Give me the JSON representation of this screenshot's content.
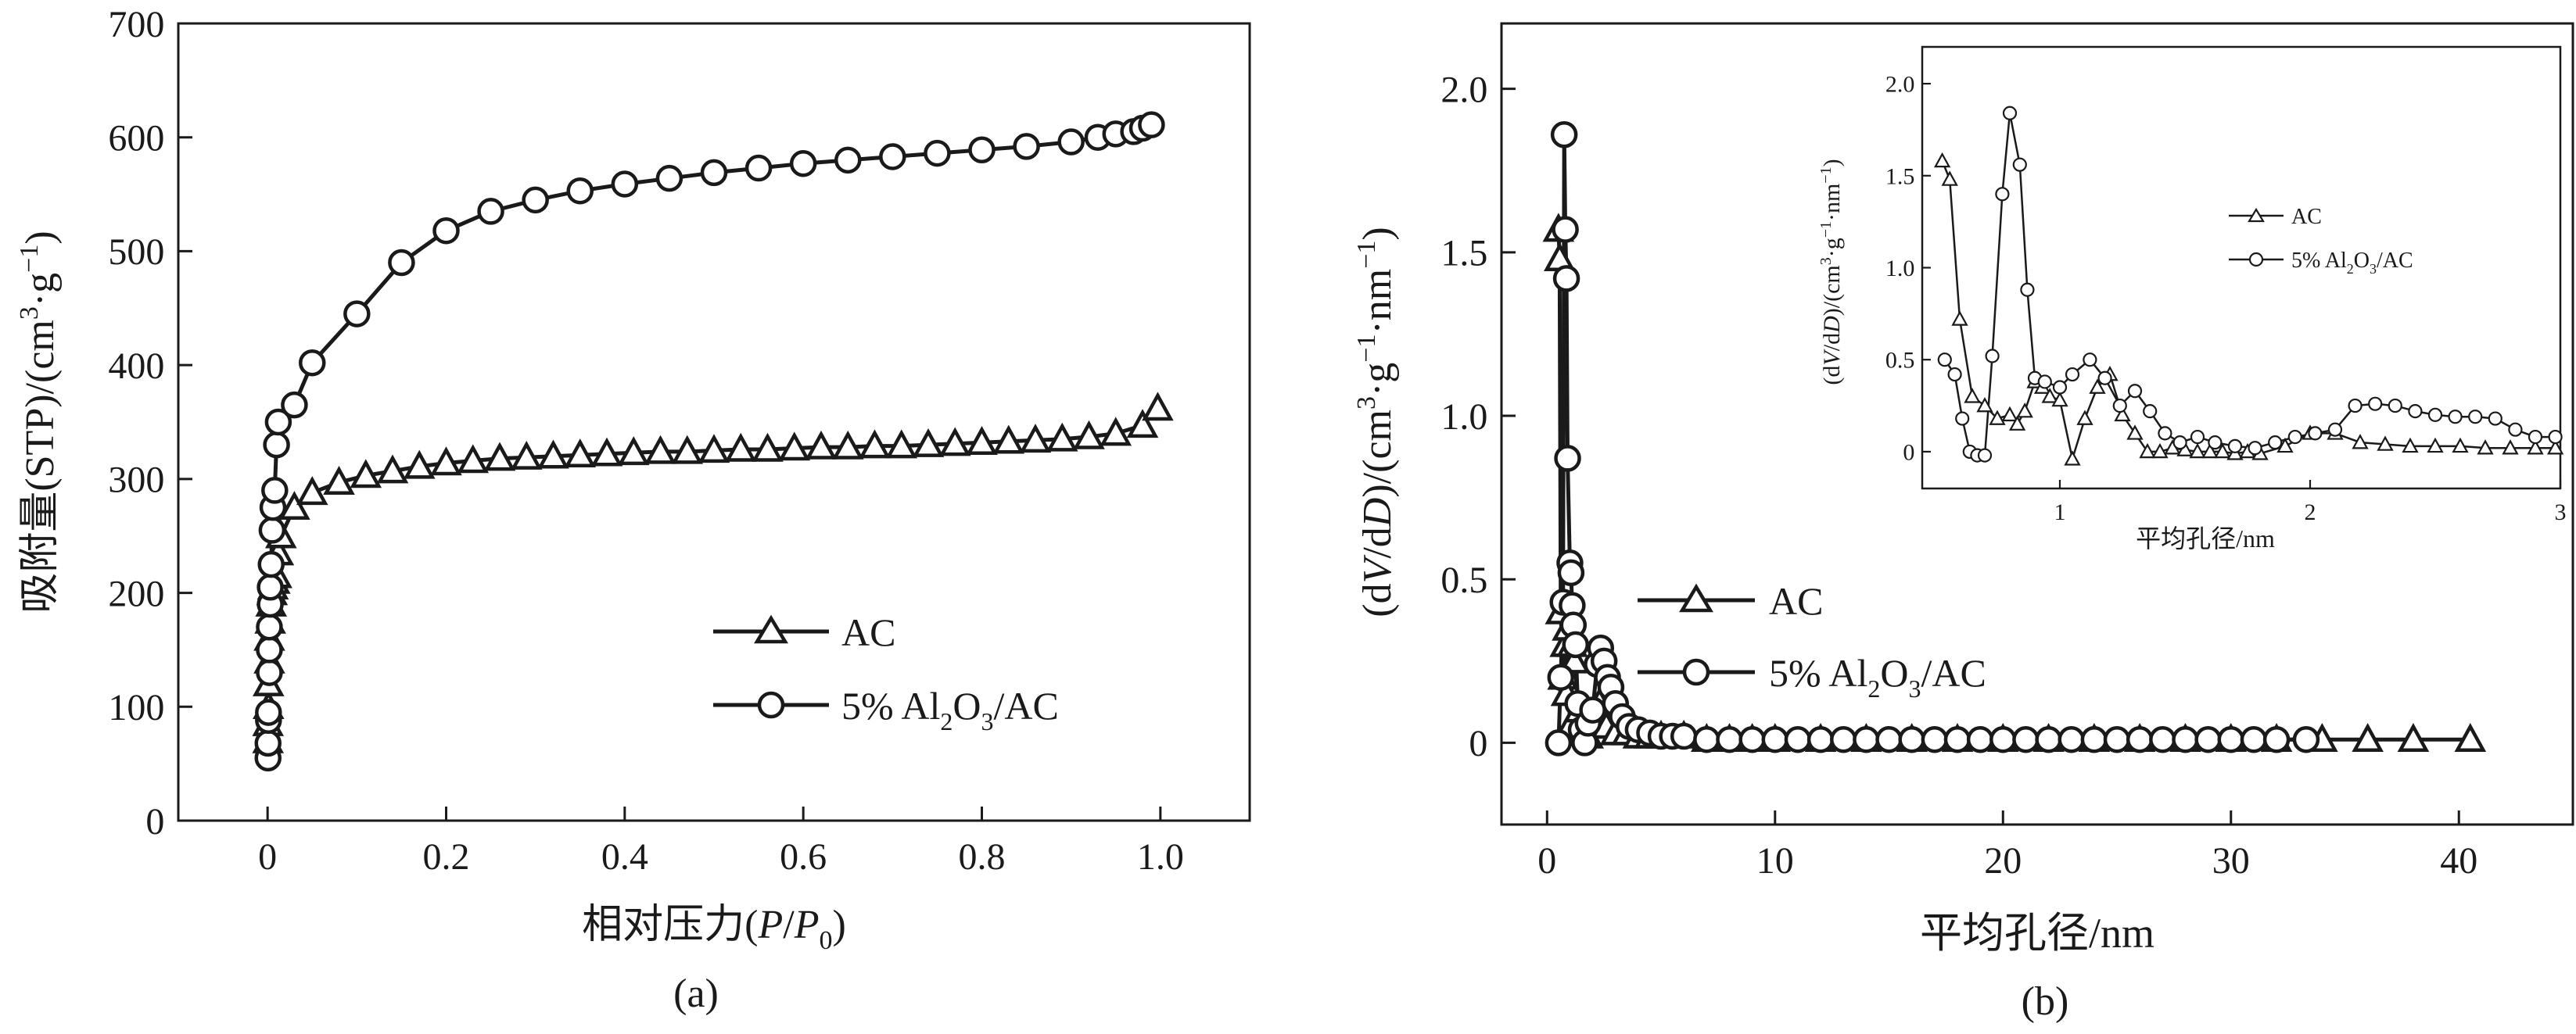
{
  "colors": {
    "ink": "#1a1a1a",
    "background": "#ffffff",
    "marker_fill": "#ffffff"
  },
  "panel_a": {
    "label": "(a)"
  },
  "panel_b": {
    "label": "(b)"
  },
  "chart_data": [
    {
      "id": "a",
      "type": "line",
      "title": "",
      "xlabel_main": "相对压力(",
      "xlabel_p": "P",
      "xlabel_slash": "/",
      "xlabel_p0": "P",
      "xlabel_sub": "0",
      "xlabel_close": ")",
      "ylabel_main": "吸附量(STP)/(cm",
      "ylabel_sup1": "3",
      "ylabel_mid": "·g",
      "ylabel_sup2": "−1",
      "ylabel_close": ")",
      "xlim": [
        -0.1,
        1.1
      ],
      "ylim": [
        0,
        700
      ],
      "xticks": [
        0,
        0.2,
        0.4,
        0.6,
        0.8,
        1.0
      ],
      "xtick_labels": [
        "0",
        "0.2",
        "0.4",
        "0.6",
        "0.8",
        "1.0"
      ],
      "yticks": [
        0,
        100,
        200,
        300,
        400,
        500,
        600,
        700
      ],
      "ytick_labels": [
        "0",
        "100",
        "200",
        "300",
        "400",
        "500",
        "600",
        "700"
      ],
      "legend": {
        "position": "lower-right",
        "entries": [
          {
            "marker": "triangle",
            "text": "AC"
          },
          {
            "marker": "circle",
            "text_pre": "5% Al",
            "sub1": "2",
            "text_mid": "O",
            "sub2": "3",
            "text_post": "/AC"
          }
        ]
      },
      "series": [
        {
          "name": "AC",
          "marker": "triangle",
          "x": [
            0.0005,
            0.0005,
            0.001,
            0.001,
            0.002,
            0.002,
            0.003,
            0.004,
            0.005,
            0.006,
            0.008,
            0.01,
            0.012,
            0.015,
            0.03,
            0.05,
            0.08,
            0.11,
            0.14,
            0.17,
            0.2,
            0.23,
            0.26,
            0.29,
            0.32,
            0.35,
            0.38,
            0.41,
            0.44,
            0.47,
            0.5,
            0.53,
            0.56,
            0.59,
            0.62,
            0.65,
            0.68,
            0.71,
            0.74,
            0.77,
            0.8,
            0.83,
            0.86,
            0.89,
            0.92,
            0.95,
            0.98,
            0.997
          ],
          "y": [
            70,
            85,
            100,
            120,
            140,
            160,
            175,
            190,
            200,
            205,
            210,
            215,
            235,
            250,
            275,
            288,
            297,
            303,
            307,
            311,
            314,
            316,
            318,
            319,
            320,
            321,
            322,
            323,
            324,
            324,
            325,
            326,
            326,
            327,
            328,
            328,
            329,
            329,
            330,
            331,
            332,
            333,
            334,
            335,
            337,
            340,
            347,
            362
          ]
        },
        {
          "name": "5% Al2O3/AC",
          "marker": "circle",
          "x": [
            0.0005,
            0.0005,
            0.001,
            0.001,
            0.002,
            0.002,
            0.002,
            0.003,
            0.003,
            0.004,
            0.005,
            0.006,
            0.008,
            0.01,
            0.012,
            0.03,
            0.05,
            0.1,
            0.15,
            0.2,
            0.25,
            0.3,
            0.35,
            0.4,
            0.45,
            0.5,
            0.55,
            0.6,
            0.65,
            0.7,
            0.75,
            0.8,
            0.85,
            0.9,
            0.93,
            0.95,
            0.97,
            0.98,
            0.99
          ],
          "y": [
            55,
            68,
            88,
            95,
            130,
            150,
            170,
            190,
            205,
            225,
            255,
            275,
            290,
            330,
            350,
            365,
            402,
            445,
            490,
            518,
            535,
            545,
            553,
            559,
            564,
            569,
            573,
            577,
            580,
            583,
            586,
            589,
            592,
            596,
            600,
            603,
            605,
            608,
            611
          ]
        }
      ]
    },
    {
      "id": "b",
      "type": "line",
      "title": "",
      "xlabel": "平均孔径/nm",
      "ylabel_pre": "(d",
      "ylabel_v": "V",
      "ylabel_mid": "/d",
      "ylabel_d": "D",
      "ylabel_open": ")/(cm",
      "ylabel_sup1": "3",
      "ylabel_g": "·g",
      "ylabel_sup2": "−1",
      "ylabel_nm": "·nm",
      "ylabel_sup3": "−1",
      "ylabel_close": ")",
      "xlim": [
        -2,
        45
      ],
      "ylim": [
        -0.25,
        2.2
      ],
      "xticks": [
        0,
        10,
        20,
        30,
        40
      ],
      "xtick_labels": [
        "0",
        "10",
        "20",
        "30",
        "40"
      ],
      "yticks": [
        0,
        0.5,
        1.0,
        1.5,
        2.0
      ],
      "ytick_labels": [
        "0",
        "0.5",
        "1.0",
        "1.5",
        "2.0"
      ],
      "legend": {
        "position": "center-left",
        "entries": [
          {
            "marker": "triangle",
            "text": "AC"
          },
          {
            "marker": "circle",
            "text_pre": "5% Al",
            "sub1": "2",
            "text_mid": "O",
            "sub2": "3",
            "text_post": "/AC"
          }
        ]
      },
      "series": [
        {
          "name": "AC",
          "marker": "triangle",
          "x": [
            0.5,
            0.55,
            0.6,
            0.7,
            0.8,
            0.85,
            0.9,
            1.0,
            1.1,
            1.2,
            1.4,
            1.6,
            1.8,
            2.0,
            2.3,
            2.6,
            3.0,
            3.5,
            4.0,
            4.5,
            5,
            6,
            7,
            8,
            9,
            10,
            12,
            14,
            16,
            18,
            20,
            22,
            24,
            26,
            28,
            30,
            32,
            34,
            36,
            38,
            40.5
          ],
          "y": [
            1.57,
            1.48,
            0.4,
            0.2,
            0.3,
            0.15,
            0.35,
            0.05,
            0.3,
            0.25,
            0.1,
            0.03,
            0.02,
            0.08,
            0.12,
            0.05,
            0.03,
            0.03,
            0.02,
            0.02,
            0.02,
            0.02,
            0.01,
            0.01,
            0.01,
            0.01,
            0.01,
            0.01,
            0.01,
            0.01,
            0.01,
            0.01,
            0.01,
            0.01,
            0.01,
            0.01,
            0.01,
            0.01,
            0.01,
            0.01,
            0.01
          ]
        },
        {
          "name": "5% Al2O3/AC",
          "marker": "circle",
          "x": [
            0.5,
            0.6,
            0.7,
            0.75,
            0.8,
            0.85,
            0.9,
            1.0,
            1.05,
            1.1,
            1.15,
            1.25,
            1.35,
            1.5,
            1.65,
            1.8,
            2.0,
            2.2,
            2.35,
            2.5,
            2.65,
            2.8,
            3.0,
            3.3,
            3.6,
            4.0,
            4.5,
            5.0,
            5.5,
            6,
            7,
            8,
            9,
            10,
            11,
            12,
            13,
            14,
            15,
            16,
            17,
            18,
            19,
            20,
            21,
            22,
            23,
            24,
            25,
            26,
            27,
            28,
            29,
            30,
            31,
            32,
            33.3
          ],
          "y": [
            0.0,
            0.2,
            0.43,
            1.86,
            1.57,
            1.42,
            0.87,
            0.55,
            0.52,
            0.42,
            0.36,
            0.3,
            0.12,
            0.04,
            0.0,
            0.06,
            0.1,
            0.24,
            0.29,
            0.25,
            0.2,
            0.17,
            0.12,
            0.08,
            0.05,
            0.04,
            0.03,
            0.02,
            0.02,
            0.02,
            0.01,
            0.01,
            0.01,
            0.01,
            0.01,
            0.01,
            0.01,
            0.01,
            0.01,
            0.01,
            0.01,
            0.01,
            0.01,
            0.01,
            0.01,
            0.01,
            0.01,
            0.01,
            0.01,
            0.01,
            0.01,
            0.01,
            0.01,
            0.01,
            0.01,
            0.01,
            0.01
          ]
        }
      ]
    },
    {
      "id": "b-inset",
      "type": "line",
      "title": "",
      "xlabel": "平均孔径/nm",
      "ylabel_pre": "(d",
      "ylabel_v": "V",
      "ylabel_mid": "/d",
      "ylabel_d": "D",
      "ylabel_open": ")/(cm",
      "ylabel_sup1": "3",
      "ylabel_g": "·g",
      "ylabel_sup2": "−1",
      "ylabel_nm": "·nm",
      "ylabel_sup3": "−1",
      "ylabel_close": ")",
      "xlim": [
        0.45,
        3.0
      ],
      "ylim": [
        -0.2,
        2.2
      ],
      "xticks": [
        1,
        2,
        3
      ],
      "xtick_labels": [
        "1",
        "2",
        "3"
      ],
      "yticks": [
        0,
        0.5,
        1.0,
        1.5,
        2.0
      ],
      "ytick_labels": [
        "0",
        "0.5",
        "1.0",
        "1.5",
        "2.0"
      ],
      "legend": {
        "position": "top-center",
        "entries": [
          {
            "marker": "triangle",
            "text": "AC"
          },
          {
            "marker": "circle",
            "text_pre": "5% Al",
            "sub1": "2",
            "text_mid": "O",
            "sub2": "3",
            "text_post": "/AC"
          }
        ]
      },
      "series": [
        {
          "name": "AC",
          "marker": "triangle",
          "x": [
            0.53,
            0.56,
            0.6,
            0.65,
            0.7,
            0.75,
            0.8,
            0.83,
            0.86,
            0.9,
            0.93,
            0.96,
            1.0,
            1.05,
            1.1,
            1.15,
            1.2,
            1.25,
            1.3,
            1.35,
            1.4,
            1.45,
            1.5,
            1.55,
            1.6,
            1.65,
            1.7,
            1.75,
            1.8,
            1.9,
            2.0,
            2.1,
            2.2,
            2.3,
            2.4,
            2.5,
            2.6,
            2.7,
            2.8,
            2.9,
            2.98
          ],
          "y": [
            1.58,
            1.48,
            0.72,
            0.3,
            0.25,
            0.18,
            0.2,
            0.15,
            0.22,
            0.38,
            0.35,
            0.3,
            0.28,
            -0.04,
            0.18,
            0.35,
            0.42,
            0.2,
            0.1,
            0.0,
            0.0,
            0.02,
            0.01,
            0.0,
            0.0,
            0.0,
            -0.01,
            0.0,
            -0.01,
            0.03,
            0.1,
            0.1,
            0.05,
            0.04,
            0.03,
            0.03,
            0.03,
            0.02,
            0.02,
            0.02,
            0.02
          ]
        },
        {
          "name": "5% Al2O3/AC",
          "marker": "circle",
          "x": [
            0.54,
            0.58,
            0.61,
            0.64,
            0.67,
            0.7,
            0.73,
            0.77,
            0.8,
            0.84,
            0.87,
            0.9,
            0.94,
            1.0,
            1.05,
            1.12,
            1.18,
            1.24,
            1.3,
            1.36,
            1.42,
            1.48,
            1.55,
            1.62,
            1.7,
            1.78,
            1.86,
            1.94,
            2.02,
            2.1,
            2.18,
            2.26,
            2.34,
            2.42,
            2.5,
            2.58,
            2.66,
            2.74,
            2.82,
            2.9,
            2.98
          ],
          "y": [
            0.5,
            0.42,
            0.18,
            0.0,
            -0.02,
            -0.02,
            0.52,
            1.4,
            1.84,
            1.56,
            0.88,
            0.4,
            0.38,
            0.35,
            0.42,
            0.5,
            0.4,
            0.25,
            0.33,
            0.22,
            0.1,
            0.05,
            0.08,
            0.05,
            0.03,
            0.02,
            0.05,
            0.08,
            0.1,
            0.12,
            0.25,
            0.26,
            0.25,
            0.22,
            0.2,
            0.19,
            0.19,
            0.18,
            0.12,
            0.08,
            0.08
          ]
        }
      ]
    }
  ]
}
